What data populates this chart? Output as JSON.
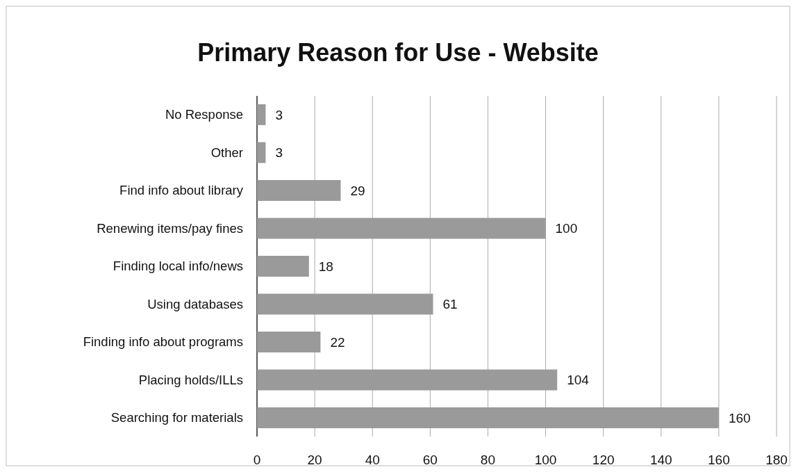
{
  "chart_data": {
    "type": "bar",
    "orientation": "horizontal",
    "title": "Primary Reason for Use - Website",
    "categories": [
      "No Response",
      "Other",
      "Find info about library",
      "Renewing items/pay fines",
      "Finding local info/news",
      "Using databases",
      "Finding info about programs",
      "Placing holds/ILLs",
      "Searching for materials"
    ],
    "values": [
      3,
      3,
      29,
      100,
      18,
      61,
      22,
      104,
      160
    ],
    "color": "#9a9a9a",
    "xlim": [
      0,
      180
    ],
    "xticks": [
      0,
      20,
      40,
      60,
      80,
      100,
      120,
      140,
      160,
      180
    ],
    "grid": "x",
    "data_labels": true
  }
}
